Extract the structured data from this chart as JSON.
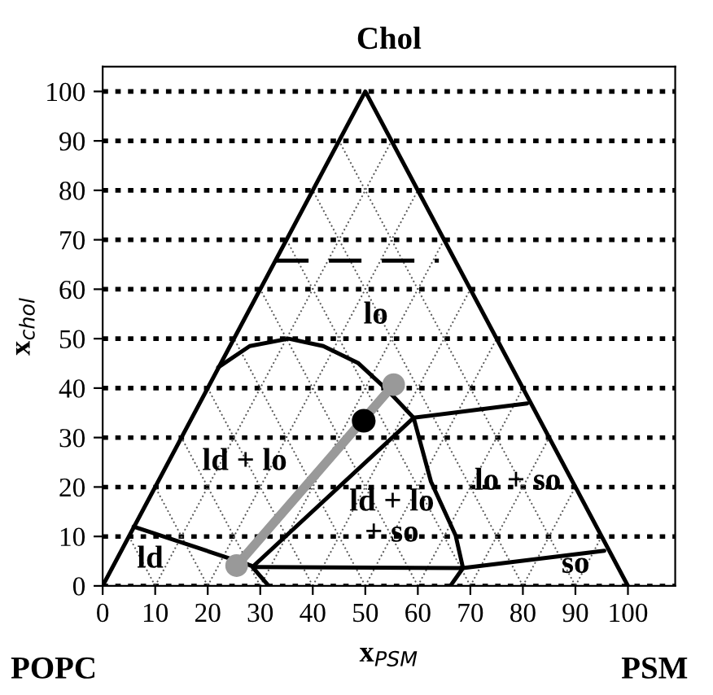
{
  "chart_data": {
    "type": "line",
    "title": "Chol",
    "xlabel": "x$_{PSM}$",
    "ylabel": "x$_{chol}$",
    "xlim": [
      0,
      109
    ],
    "ylim": [
      0,
      105
    ],
    "xticks": [
      0,
      10,
      20,
      30,
      40,
      50,
      60,
      70,
      80,
      90,
      100
    ],
    "yticks": [
      0,
      10,
      20,
      30,
      40,
      50,
      60,
      70,
      80,
      90,
      100
    ],
    "grid": "y",
    "legend": false,
    "series": [
      {
        "color": "#000000",
        "x": [
          0,
          50,
          100
        ],
        "values": [
          0,
          100,
          0
        ]
      },
      {
        "color": "#000000",
        "line_style": "dashed",
        "x": [
          33,
          64
        ],
        "values": [
          65.8,
          65.8
        ]
      },
      {
        "color": "#000000",
        "x": [
          22,
          28,
          35.4,
          42,
          48.6,
          54.2,
          59.2
        ],
        "values": [
          44.2,
          48.5,
          50,
          48.5,
          45.1,
          39.6,
          34
        ]
      },
      {
        "color": "#000000",
        "x": [
          5.9,
          28.3,
          31.6
        ],
        "values": [
          12,
          4.1,
          0
        ]
      },
      {
        "color": "#000000",
        "x": [
          28.8,
          59.2
        ],
        "values": [
          4.1,
          34
        ]
      },
      {
        "color": "#000000",
        "x": [
          59.2,
          62.5,
          67.2,
          68.6,
          66.2
        ],
        "values": [
          34,
          21.1,
          10.2,
          3.6,
          0
        ]
      },
      {
        "color": "#000000",
        "x": [
          59.2,
          80.8
        ],
        "values": [
          34,
          36.9
        ]
      },
      {
        "color": "#000000",
        "x": [
          28.8,
          68.6,
          95.5
        ],
        "values": [
          3.8,
          3.6,
          7.1
        ]
      },
      {
        "color": "#999999",
        "marker": "circle",
        "x": [
          25.5,
          55.4
        ],
        "values": [
          4.1,
          40.7
        ]
      },
      {
        "type": "scatter",
        "color": "#000000",
        "x": [
          49.7
        ],
        "values": [
          33.4
        ]
      },
      {
        "color": "#555555",
        "line_style": "dotted",
        "x": [
          10,
          55
        ],
        "values": [
          0,
          90
        ]
      },
      {
        "color": "#555555",
        "line_style": "dotted",
        "x": [
          20,
          60
        ],
        "values": [
          0,
          80
        ]
      },
      {
        "color": "#555555",
        "line_style": "dotted",
        "x": [
          30,
          65
        ],
        "values": [
          0,
          70
        ]
      },
      {
        "color": "#555555",
        "line_style": "dotted",
        "x": [
          40,
          70
        ],
        "values": [
          0,
          60
        ]
      },
      {
        "color": "#555555",
        "line_style": "dotted",
        "x": [
          50,
          75
        ],
        "values": [
          0,
          50
        ]
      },
      {
        "color": "#555555",
        "line_style": "dotted",
        "x": [
          60,
          80
        ],
        "values": [
          0,
          40
        ]
      },
      {
        "color": "#555555",
        "line_style": "dotted",
        "x": [
          70,
          85
        ],
        "values": [
          0,
          30
        ]
      },
      {
        "color": "#555555",
        "line_style": "dotted",
        "x": [
          80,
          90
        ],
        "values": [
          0,
          20
        ]
      },
      {
        "color": "#555555",
        "line_style": "dotted",
        "x": [
          90,
          95
        ],
        "values": [
          0,
          10
        ]
      },
      {
        "color": "#555555",
        "line_style": "dotted",
        "x": [
          10,
          5
        ],
        "values": [
          0,
          10
        ]
      },
      {
        "color": "#555555",
        "line_style": "dotted",
        "x": [
          20,
          10
        ],
        "values": [
          0,
          20
        ]
      },
      {
        "color": "#555555",
        "line_style": "dotted",
        "x": [
          30,
          15
        ],
        "values": [
          0,
          30
        ]
      },
      {
        "color": "#555555",
        "line_style": "dotted",
        "x": [
          40,
          20
        ],
        "values": [
          0,
          40
        ]
      },
      {
        "color": "#555555",
        "line_style": "dotted",
        "x": [
          50,
          25
        ],
        "values": [
          0,
          50
        ]
      },
      {
        "color": "#555555",
        "line_style": "dotted",
        "x": [
          60,
          30
        ],
        "values": [
          0,
          60
        ]
      },
      {
        "color": "#555555",
        "line_style": "dotted",
        "x": [
          70,
          35
        ],
        "values": [
          0,
          70
        ]
      },
      {
        "color": "#555555",
        "line_style": "dotted",
        "x": [
          80,
          40
        ],
        "values": [
          0,
          80
        ]
      },
      {
        "color": "#555555",
        "line_style": "dotted",
        "x": [
          90,
          45
        ],
        "values": [
          0,
          90
        ]
      }
    ],
    "annotations": [
      "POPC",
      "PSM",
      "lo",
      "ld + lo",
      "ld + lo\n+ so",
      "lo + so",
      "so",
      "ld"
    ]
  }
}
